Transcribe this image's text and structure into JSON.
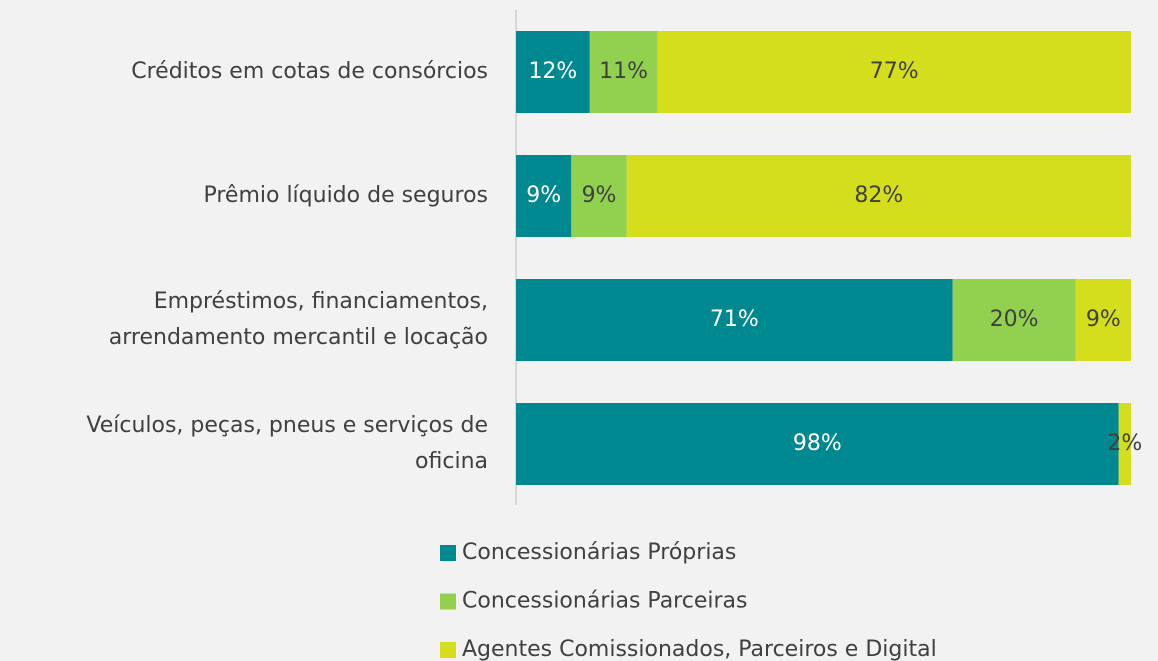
{
  "chart_data": {
    "type": "stacked-barh",
    "categories": [
      [
        "Créditos em cotas de consórcios"
      ],
      [
        "Prêmio líquido de seguros"
      ],
      [
        "Empréstimos, financiamentos,",
        "arrendamento mercantil e locação"
      ],
      [
        "Veículos, peças, pneus e serviços de",
        "oficina"
      ]
    ],
    "xlim": [
      0,
      100
    ],
    "series": [
      {
        "name": "Concessionárias Próprias",
        "color": "#008891",
        "values": [
          12,
          9,
          71,
          98
        ],
        "value_labels": [
          "12%",
          "9%",
          "71%",
          "98%"
        ]
      },
      {
        "name": "Concessionárias Parceiras",
        "color": "#92d050",
        "values": [
          11,
          9,
          20,
          0
        ],
        "value_labels": [
          "11%",
          "9%",
          "20%",
          null
        ]
      },
      {
        "name": "Agentes Comissionados, Parceiros e Digital",
        "color": "#d4de1c",
        "values": [
          77,
          82,
          9,
          2
        ],
        "value_labels": [
          "77%",
          "82%",
          "9%",
          "2%"
        ]
      }
    ],
    "legend": "bottom"
  }
}
